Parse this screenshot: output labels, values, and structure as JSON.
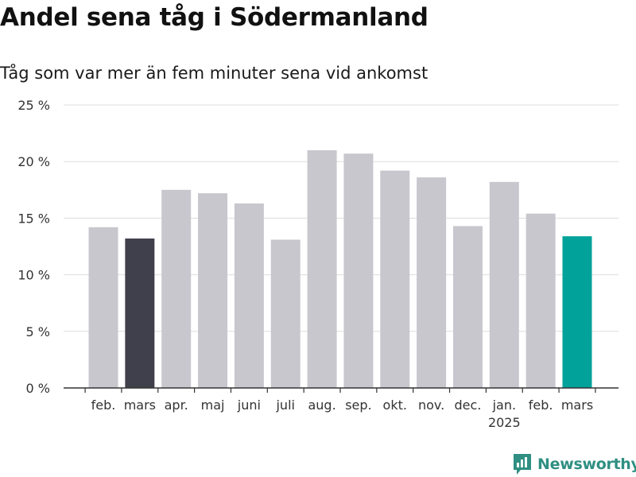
{
  "title": "Andel sena tåg i Södermanland",
  "subtitle": "Tåg som var mer än fem minuter sena vid ankomst",
  "brand": "Newsworthy",
  "colors": {
    "bar_default": "#c8c7ce",
    "bar_previous_year": "#403f4c",
    "bar_current": "#00a29a",
    "grid": "#dddddd",
    "axis": "#333333",
    "brand": "#2f8f82"
  },
  "chart_data": {
    "type": "bar",
    "categories": [
      "feb.",
      "mars",
      "apr.",
      "maj",
      "juni",
      "juli",
      "aug.",
      "sep.",
      "okt.",
      "nov.",
      "dec.",
      "jan.",
      "feb.",
      "mars"
    ],
    "year_labels": [
      {
        "index": 11,
        "label": "2025"
      }
    ],
    "values": [
      14.2,
      13.2,
      17.5,
      17.2,
      16.3,
      13.1,
      21.0,
      20.7,
      19.2,
      18.6,
      14.3,
      18.2,
      15.4,
      13.4
    ],
    "highlight": [
      {
        "index": 1,
        "color": "#403f4c"
      },
      {
        "index": 13,
        "color": "#00a29a"
      }
    ],
    "ylim": [
      0,
      25
    ],
    "yticks": [
      0,
      5,
      10,
      15,
      20,
      25
    ],
    "ytick_labels": [
      "0 %",
      "5 %",
      "10 %",
      "15 %",
      "20 %",
      "25 %"
    ],
    "grid": true,
    "xlabel": "",
    "ylabel": ""
  }
}
